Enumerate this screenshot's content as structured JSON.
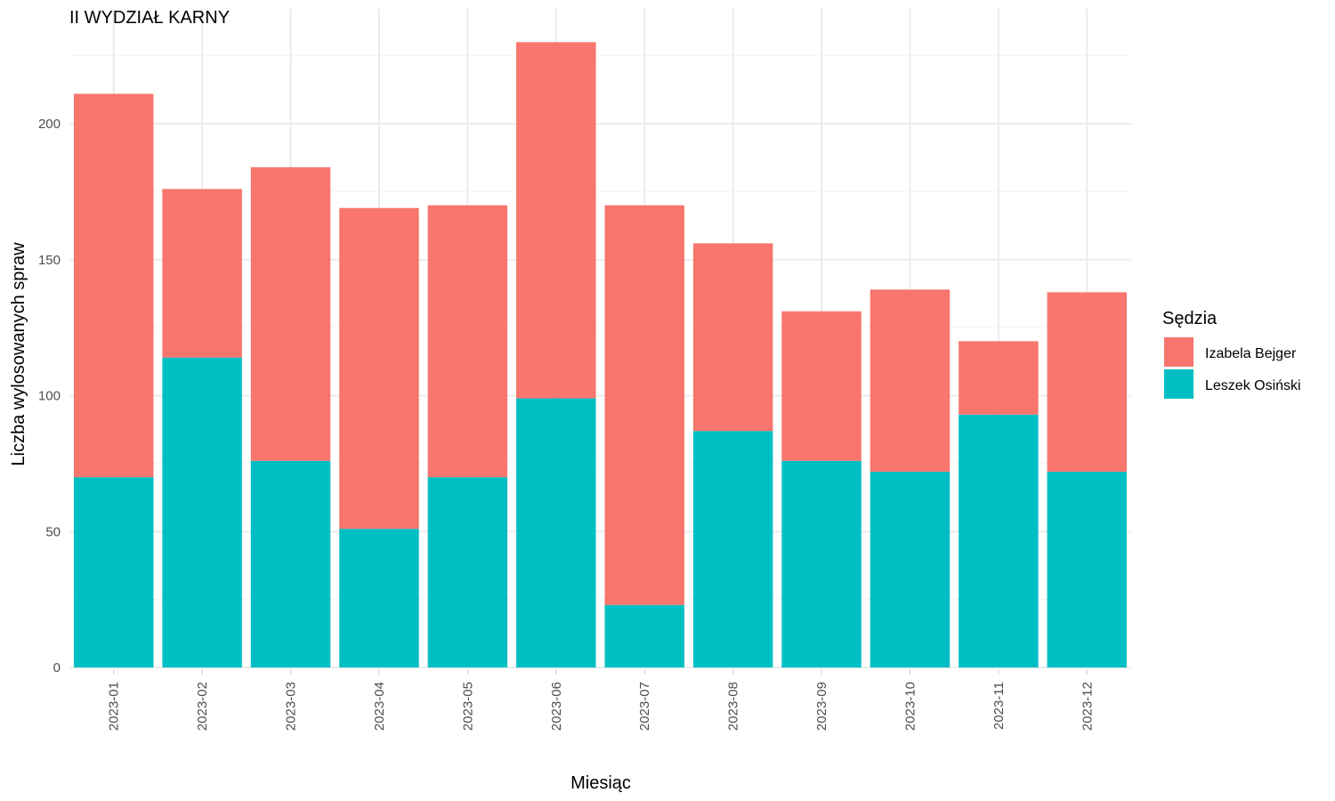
{
  "chart_data": {
    "type": "bar",
    "stacked": true,
    "title": "II WYDZIAŁ KARNY",
    "xlabel": "Miesiąc",
    "ylabel": "Liczba wylosowanych spraw",
    "categories": [
      "2023-01",
      "2023-02",
      "2023-03",
      "2023-04",
      "2023-05",
      "2023-06",
      "2023-07",
      "2023-08",
      "2023-09",
      "2023-10",
      "2023-11",
      "2023-12"
    ],
    "series": [
      {
        "name": "Leszek Osiński",
        "color": "#00BFC4",
        "values": [
          70,
          114,
          76,
          51,
          70,
          99,
          23,
          87,
          76,
          72,
          93,
          72
        ]
      },
      {
        "name": "Izabela Bejger",
        "color": "#F8766D",
        "values": [
          141,
          62,
          108,
          118,
          100,
          131,
          147,
          69,
          55,
          67,
          27,
          66
        ]
      }
    ],
    "yticks": [
      0,
      50,
      100,
      150,
      200
    ],
    "ylim": [
      0,
      241
    ],
    "grid": true,
    "legend": {
      "title": "Sędzia",
      "position": "right",
      "entries": [
        {
          "label": "Izabela Bejger",
          "color": "#F8766D"
        },
        {
          "label": "Leszek Osiński",
          "color": "#00BFC4"
        }
      ]
    }
  }
}
